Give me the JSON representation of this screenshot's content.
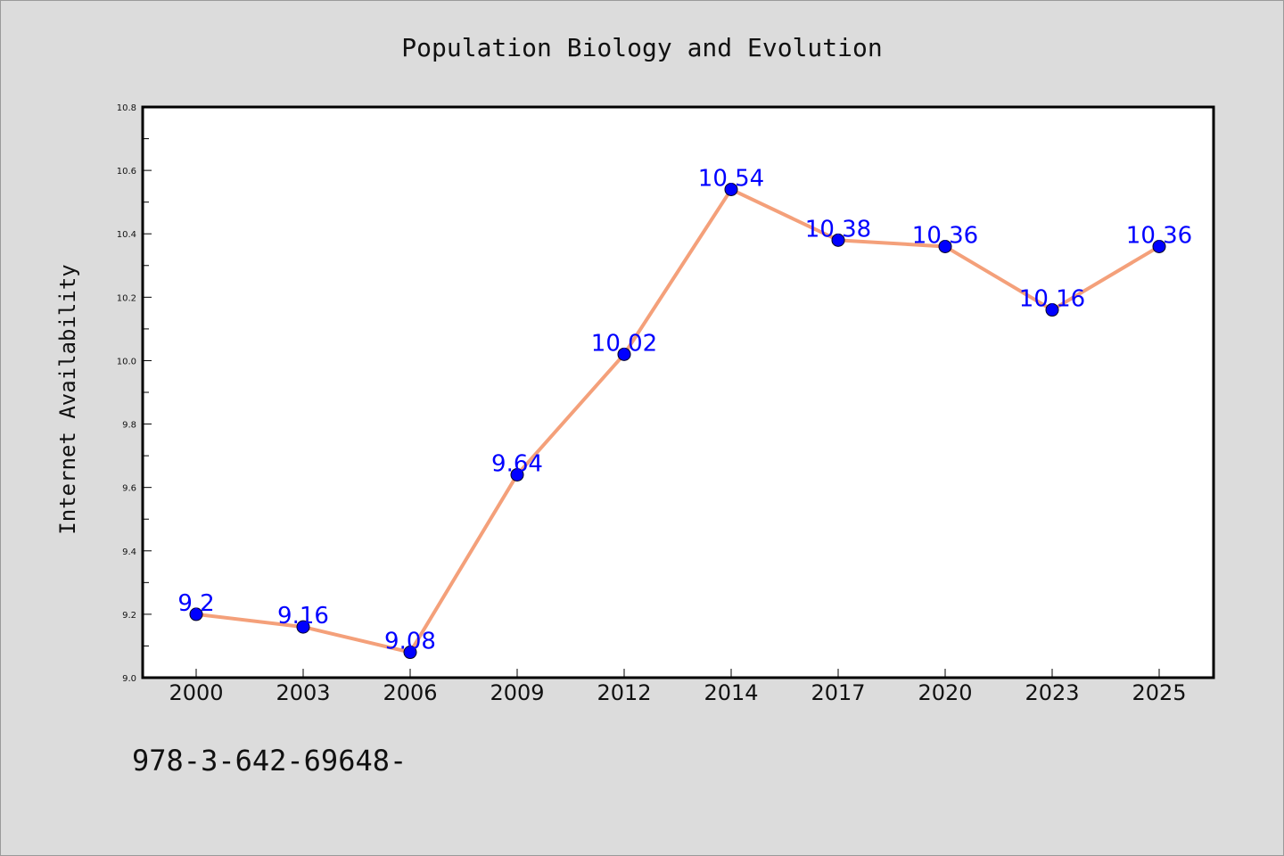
{
  "chart_data": {
    "type": "line",
    "title": "Population Biology and Evolution",
    "xlabel": "",
    "ylabel": "Internet Availability",
    "categories": [
      "2000",
      "2003",
      "2006",
      "2009",
      "2012",
      "2014",
      "2017",
      "2020",
      "2023",
      "2025"
    ],
    "series": [
      {
        "values": [
          9.2,
          9.16,
          9.08,
          9.64,
          10.02,
          10.54,
          10.38,
          10.36,
          10.16,
          10.36
        ],
        "data_labels": [
          "9.2",
          "9.16",
          "9.08",
          "9.64",
          "10.02",
          "10.54",
          "10.38",
          "10.36",
          "10.16",
          "10.36"
        ],
        "line_color": "#f4a07a",
        "marker_color": "#0000ff"
      }
    ],
    "ylim": [
      9.0,
      10.8
    ],
    "yticks": [
      "9.0",
      "9.2",
      "9.4",
      "9.6",
      "9.8",
      "10.0",
      "10.2",
      "10.4",
      "10.6",
      "10.8"
    ],
    "grid": false,
    "legend": "none"
  },
  "footer_text": "978-3-642-69648-",
  "colors": {
    "background": "#dcdcdc",
    "plot_background": "#ffffff",
    "data_label": "#0000ff"
  }
}
